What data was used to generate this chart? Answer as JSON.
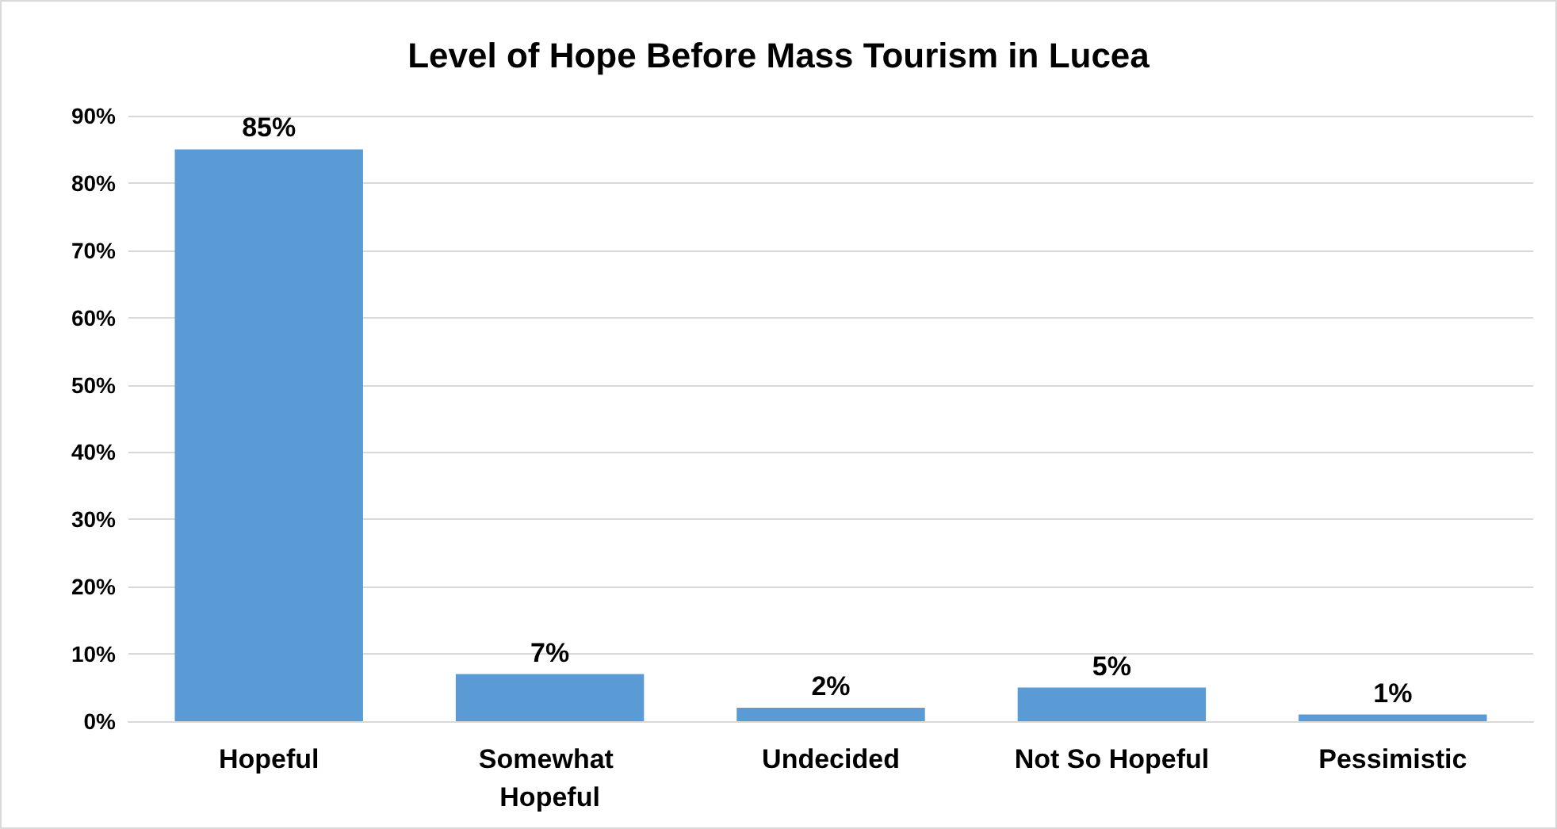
{
  "chart_data": {
    "type": "bar",
    "title": "Level of Hope Before Mass Tourism in Lucea",
    "categories": [
      "Hopeful",
      "Somewhat Hopeful",
      "Undecided",
      "Not So Hopeful",
      "Pessimistic"
    ],
    "values": [
      85,
      7,
      2,
      5,
      1
    ],
    "value_labels": [
      "85%",
      "7%",
      "2%",
      "5%",
      "1%"
    ],
    "color": "#5b9bd5",
    "ylim": [
      0,
      90
    ],
    "yticks": [
      {
        "value": 0,
        "label": "0%"
      },
      {
        "value": 10,
        "label": "10%"
      },
      {
        "value": 20,
        "label": "20%"
      },
      {
        "value": 30,
        "label": "30%"
      },
      {
        "value": 40,
        "label": "40%"
      },
      {
        "value": 50,
        "label": "50%"
      },
      {
        "value": 60,
        "label": "60%"
      },
      {
        "value": 70,
        "label": "70%"
      },
      {
        "value": 80,
        "label": "80%"
      },
      {
        "value": 90,
        "label": "90%"
      }
    ],
    "grid": "y"
  }
}
